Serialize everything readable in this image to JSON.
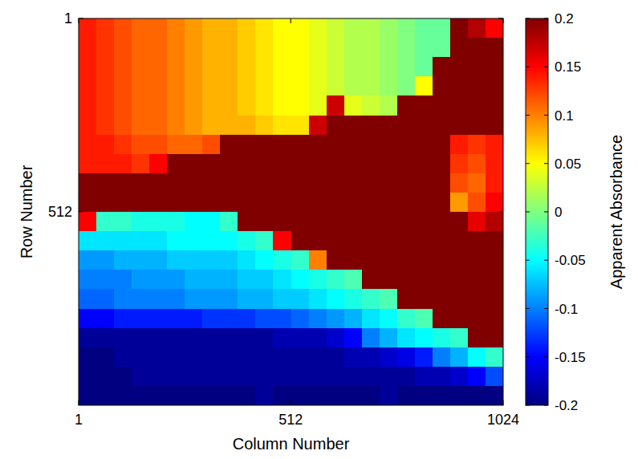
{
  "chart_data": {
    "type": "heatmap",
    "x_label": "Column Number",
    "y_label": "Row Number",
    "xlim": [
      1,
      1024
    ],
    "ylim": [
      1,
      1024
    ],
    "xticks": [
      1,
      512,
      1024
    ],
    "yticks": [
      1,
      512
    ],
    "cells": [
      [
        0.14,
        0.13,
        0.12,
        0.11,
        0.11,
        0.1,
        0.09,
        0.08,
        0.08,
        0.07,
        0.06,
        0.05,
        0.05,
        0.04,
        0.03,
        0.02,
        0.02,
        0.01,
        0,
        -0.01,
        -0.01,
        0.2,
        0.18,
        0.15
      ],
      [
        0.14,
        0.13,
        0.12,
        0.11,
        0.11,
        0.1,
        0.09,
        0.08,
        0.08,
        0.07,
        0.06,
        0.05,
        0.05,
        0.04,
        0.03,
        0.02,
        0.02,
        0.01,
        0,
        -0.01,
        -0.01,
        0.2,
        0.2,
        0.2
      ],
      [
        0.14,
        0.13,
        0.12,
        0.11,
        0.11,
        0.1,
        0.09,
        0.08,
        0.08,
        0.07,
        0.06,
        0.05,
        0.05,
        0.04,
        0.03,
        0.02,
        0.02,
        0.01,
        0,
        -0.01,
        0.2,
        0.2,
        0.2,
        0.2
      ],
      [
        0.14,
        0.13,
        0.12,
        0.11,
        0.11,
        0.1,
        0.09,
        0.08,
        0.08,
        0.07,
        0.06,
        0.05,
        0.05,
        0.04,
        0.03,
        0.02,
        0.02,
        0.01,
        0,
        0.05,
        0.2,
        0.2,
        0.2,
        0.2
      ],
      [
        0.14,
        0.13,
        0.12,
        0.11,
        0.11,
        0.1,
        0.09,
        0.08,
        0.08,
        0.07,
        0.06,
        0.05,
        0.05,
        0.04,
        0.17,
        0.04,
        0.03,
        0.02,
        0.2,
        0.2,
        0.2,
        0.2,
        0.2,
        0.2
      ],
      [
        0.14,
        0.13,
        0.12,
        0.11,
        0.11,
        0.1,
        0.09,
        0.08,
        0.08,
        0.08,
        0.07,
        0.06,
        0.06,
        0.17,
        0.2,
        0.2,
        0.2,
        0.2,
        0.2,
        0.2,
        0.2,
        0.2,
        0.2,
        0.2
      ],
      [
        0.14,
        0.14,
        0.13,
        0.12,
        0.12,
        0.11,
        0.11,
        0.12,
        0.2,
        0.2,
        0.2,
        0.2,
        0.2,
        0.2,
        0.2,
        0.2,
        0.2,
        0.2,
        0.2,
        0.2,
        0.2,
        0.14,
        0.13,
        0.14
      ],
      [
        0.14,
        0.14,
        0.14,
        0.13,
        0.15,
        0.2,
        0.2,
        0.2,
        0.2,
        0.2,
        0.2,
        0.2,
        0.2,
        0.2,
        0.2,
        0.2,
        0.2,
        0.2,
        0.2,
        0.2,
        0.2,
        0.13,
        0.12,
        0.14
      ],
      [
        0.2,
        0.2,
        0.2,
        0.2,
        0.2,
        0.2,
        0.2,
        0.2,
        0.2,
        0.2,
        0.2,
        0.2,
        0.2,
        0.2,
        0.2,
        0.2,
        0.2,
        0.2,
        0.2,
        0.2,
        0.2,
        0.12,
        0.11,
        0.14
      ],
      [
        0.2,
        0.2,
        0.2,
        0.2,
        0.2,
        0.2,
        0.2,
        0.2,
        0.2,
        0.2,
        0.2,
        0.2,
        0.2,
        0.2,
        0.2,
        0.2,
        0.2,
        0.2,
        0.2,
        0.2,
        0.2,
        0.09,
        0.12,
        0.15
      ],
      [
        0.15,
        -0.03,
        -0.03,
        -0.04,
        -0.04,
        -0.04,
        -0.05,
        -0.05,
        -0.03,
        0.2,
        0.2,
        0.2,
        0.2,
        0.2,
        0.2,
        0.2,
        0.2,
        0.2,
        0.2,
        0.2,
        0.2,
        0.2,
        0.16,
        0.18
      ],
      [
        -0.06,
        -0.06,
        -0.06,
        -0.06,
        -0.06,
        -0.05,
        -0.05,
        -0.05,
        -0.05,
        -0.04,
        -0.03,
        0.15,
        0.2,
        0.2,
        0.2,
        0.2,
        0.2,
        0.2,
        0.2,
        0.2,
        0.2,
        0.2,
        0.2,
        0.2
      ],
      [
        -0.09,
        -0.09,
        -0.08,
        -0.08,
        -0.08,
        -0.07,
        -0.07,
        -0.07,
        -0.07,
        -0.06,
        -0.05,
        -0.04,
        -0.03,
        0.1,
        0.2,
        0.2,
        0.2,
        0.2,
        0.2,
        0.2,
        0.2,
        0.2,
        0.2,
        0.2
      ],
      [
        -0.1,
        -0.1,
        -0.1,
        -0.09,
        -0.09,
        -0.09,
        -0.08,
        -0.08,
        -0.08,
        -0.07,
        -0.07,
        -0.06,
        -0.05,
        -0.04,
        -0.03,
        -0.02,
        0.2,
        0.2,
        0.2,
        0.2,
        0.2,
        0.2,
        0.2,
        0.2
      ],
      [
        -0.11,
        -0.11,
        -0.1,
        -0.1,
        -0.1,
        -0.1,
        -0.09,
        -0.09,
        -0.09,
        -0.08,
        -0.08,
        -0.07,
        -0.07,
        -0.06,
        -0.05,
        -0.04,
        -0.03,
        -0.02,
        0.2,
        0.2,
        0.2,
        0.2,
        0.2,
        0.2
      ],
      [
        -0.15,
        -0.15,
        -0.14,
        -0.14,
        -0.14,
        -0.14,
        -0.14,
        -0.13,
        -0.13,
        -0.13,
        -0.12,
        -0.12,
        -0.11,
        -0.1,
        -0.09,
        -0.08,
        -0.06,
        -0.05,
        -0.03,
        -0.02,
        0.2,
        0.2,
        0.2,
        0.2
      ],
      [
        -0.19,
        -0.19,
        -0.19,
        -0.19,
        -0.19,
        -0.19,
        -0.19,
        -0.19,
        -0.19,
        -0.19,
        -0.19,
        -0.18,
        -0.18,
        -0.18,
        -0.17,
        -0.15,
        -0.1,
        -0.08,
        -0.06,
        -0.05,
        -0.04,
        -0.03,
        0.2,
        0.2
      ],
      [
        -0.2,
        -0.2,
        -0.19,
        -0.19,
        -0.19,
        -0.19,
        -0.19,
        -0.19,
        -0.19,
        -0.19,
        -0.19,
        -0.19,
        -0.19,
        -0.19,
        -0.19,
        -0.18,
        -0.18,
        -0.17,
        -0.16,
        -0.14,
        -0.1,
        -0.08,
        -0.05,
        -0.03
      ],
      [
        -0.2,
        -0.2,
        -0.2,
        -0.19,
        -0.19,
        -0.19,
        -0.19,
        -0.19,
        -0.19,
        -0.19,
        -0.19,
        -0.19,
        -0.19,
        -0.19,
        -0.19,
        -0.19,
        -0.19,
        -0.19,
        -0.19,
        -0.18,
        -0.18,
        -0.17,
        -0.15,
        -0.12
      ],
      [
        -0.2,
        -0.2,
        -0.2,
        -0.2,
        -0.2,
        -0.2,
        -0.2,
        -0.2,
        -0.2,
        -0.2,
        -0.19,
        -0.2,
        -0.2,
        -0.2,
        -0.2,
        -0.2,
        -0.2,
        -0.19,
        -0.2,
        -0.2,
        -0.2,
        -0.2,
        -0.2,
        -0.2
      ]
    ],
    "colorbar": {
      "lim": [
        -0.2,
        0.2
      ],
      "ticks": [
        0.2,
        0.15,
        0.1,
        0.05,
        0,
        -0.05,
        -0.1,
        -0.15,
        -0.2
      ],
      "label": "Apparent Absorbance"
    }
  }
}
